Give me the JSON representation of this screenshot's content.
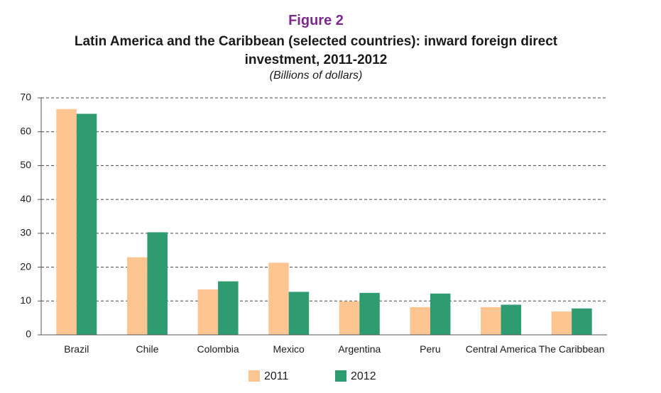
{
  "chart_data": {
    "type": "bar",
    "figure_label": "Figure 2",
    "title": "Latin America and the Caribbean (selected countries): inward foreign direct investment, 2011-2012",
    "subtitle": "(Billions of dollars)",
    "categories": [
      "Brazil",
      "Chile",
      "Colombia",
      "Mexico",
      "Argentina",
      "Peru",
      "Central America",
      "The Caribbean"
    ],
    "series": [
      {
        "name": "2011",
        "color": "#fcc592",
        "values": [
          66.7,
          22.9,
          13.4,
          21.3,
          9.9,
          8.2,
          8.2,
          6.9
        ]
      },
      {
        "name": "2012",
        "color": "#2e9b70",
        "values": [
          65.3,
          30.3,
          15.8,
          12.7,
          12.4,
          12.2,
          8.9,
          7.8
        ]
      }
    ],
    "ylim": [
      0,
      70
    ],
    "yticks": [
      0,
      10,
      20,
      30,
      40,
      50,
      60,
      70
    ],
    "grid": true,
    "legend": "bottom"
  }
}
